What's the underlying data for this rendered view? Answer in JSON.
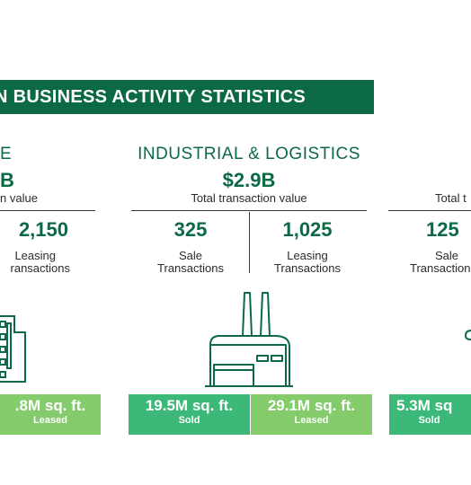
{
  "banner": {
    "title": "N BUSINESS ACTIVITY STATISTICS"
  },
  "sections": {
    "left": {
      "title": "E",
      "total_value": "B",
      "total_label": "n value",
      "leasing_number": "2,150",
      "leasing_label_1": "Leasing",
      "leasing_label_2": "ransactions",
      "leased_area": ".8M sq. ft.",
      "leased_label": "Leased"
    },
    "industrial": {
      "title": "INDUSTRIAL & LOGISTICS",
      "total_value": "$2.9B",
      "total_label": "Total transaction value",
      "sale_number": "325",
      "sale_label_1": "Sale",
      "sale_label_2": "Transactions",
      "leasing_number": "1,025",
      "leasing_label_1": "Leasing",
      "leasing_label_2": "Transactions",
      "sold_area": "19.5M sq. ft.",
      "sold_label": "Sold",
      "leased_area": "29.1M sq. ft.",
      "leased_label": "Leased"
    },
    "right": {
      "total_label": "Total t",
      "sale_number": "125",
      "sale_label_1": "Sale",
      "sale_label_2": "Transaction",
      "sold_area": "5.3M sq",
      "sold_label": "Sold"
    }
  },
  "colors": {
    "primary_green": "#0b6a45",
    "box_dark_green": "#3cb878",
    "box_light_green": "#84cc6b"
  },
  "icons": {
    "left": "office-building-icon",
    "industrial": "factory-icon",
    "right": "partial-icon"
  }
}
